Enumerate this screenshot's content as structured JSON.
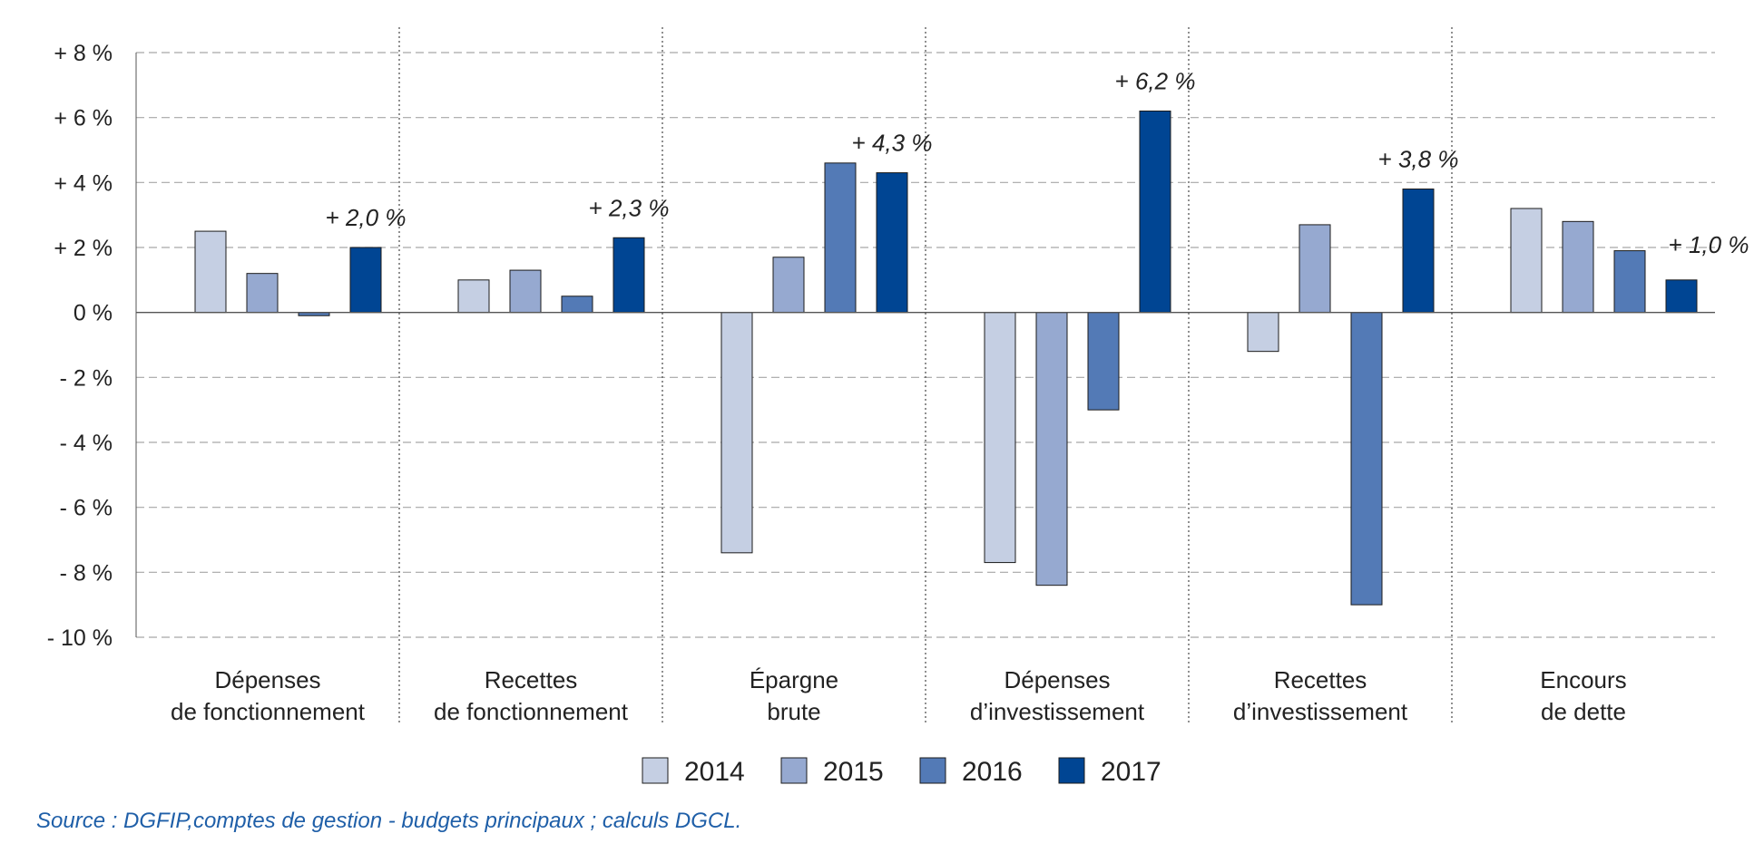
{
  "chart_data": {
    "type": "bar",
    "categories": [
      [
        "Dépenses",
        "de fonctionnement"
      ],
      [
        "Recettes",
        "de fonctionnement"
      ],
      [
        "Épargne",
        "brute"
      ],
      [
        "Dépenses",
        "d’investissement"
      ],
      [
        "Recettes",
        "d’investissement"
      ],
      [
        "Encours",
        "de dette"
      ]
    ],
    "series": [
      {
        "name": "2014",
        "color": "#c5cfe3",
        "values": [
          2.5,
          1.0,
          -7.4,
          -7.7,
          -1.2,
          3.2
        ]
      },
      {
        "name": "2015",
        "color": "#96a9d0",
        "values": [
          1.2,
          1.3,
          1.7,
          -8.4,
          2.7,
          2.8
        ]
      },
      {
        "name": "2016",
        "color": "#537ab6",
        "values": [
          -0.1,
          0.5,
          4.6,
          -3.0,
          -9.0,
          1.9
        ]
      },
      {
        "name": "2017",
        "color": "#004593",
        "values": [
          2.0,
          2.3,
          4.3,
          6.2,
          3.8,
          1.0
        ]
      }
    ],
    "annotations": [
      "+ 2,0 %",
      "+ 2,3 %",
      "+ 4,3 %",
      "+ 6,2 %",
      "+ 3,8 %",
      "+ 1,0 %"
    ],
    "y_ticks": [
      "+ 8 %",
      "+ 6 %",
      "+ 4 %",
      "+ 2 %",
      "0 %",
      "- 2 %",
      "- 4 %",
      "- 6 %",
      "- 8 %",
      "- 10 %"
    ],
    "y_tick_values": [
      8,
      6,
      4,
      2,
      0,
      -2,
      -4,
      -6,
      -8,
      -10
    ],
    "ylim": [
      -10,
      8
    ],
    "grid": true,
    "legend_position": "bottom-center",
    "title": "",
    "xlabel": "",
    "ylabel": ""
  },
  "source": "Source : DGFIP,comptes de gestion - budgets principaux ; calculs DGCL."
}
